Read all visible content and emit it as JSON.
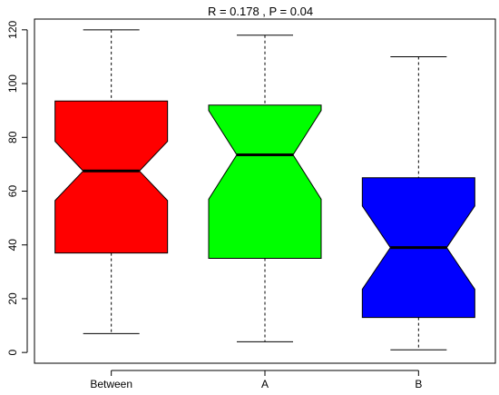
{
  "chart_data": {
    "type": "boxplot",
    "title": "R =  0.178 ,  P =  0.04",
    "xlabel": "",
    "ylabel": "",
    "ylim": [
      -4,
      124
    ],
    "yticks": [
      0,
      20,
      40,
      60,
      80,
      100,
      120
    ],
    "grid": false,
    "notched": true,
    "categories": [
      "Between",
      "A",
      "B"
    ],
    "boxes": [
      {
        "label": "Between",
        "color": "#ff0000",
        "min": 7,
        "q1": 37,
        "median": 67.5,
        "q3": 93.5,
        "max": 120,
        "notch_low": 56.5,
        "notch_high": 78.5
      },
      {
        "label": "A",
        "color": "#00ff00",
        "min": 4,
        "q1": 35,
        "median": 73.5,
        "q3": 92,
        "max": 118,
        "notch_low": 57,
        "notch_high": 90
      },
      {
        "label": "B",
        "color": "#0000ff",
        "min": 1,
        "q1": 13,
        "median": 39,
        "q3": 65,
        "max": 110,
        "notch_low": 23.5,
        "notch_high": 54.5
      }
    ]
  }
}
